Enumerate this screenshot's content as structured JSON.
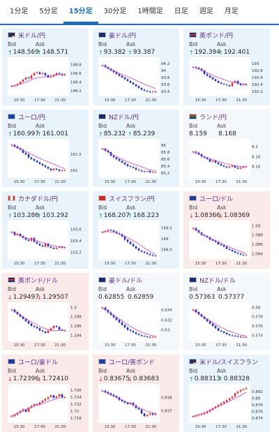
{
  "tabs": [
    {
      "label": "1分足",
      "active": false
    },
    {
      "label": "5分足",
      "active": false
    },
    {
      "label": "15分足",
      "active": true
    },
    {
      "label": "30分足",
      "active": false
    },
    {
      "label": "1時間足",
      "active": false
    },
    {
      "label": "日足",
      "active": false
    },
    {
      "label": "週足",
      "active": false
    },
    {
      "label": "月足",
      "active": false
    }
  ],
  "colors": {
    "accent": "#1a6fc4",
    "up_candle": "#d33",
    "down_candle": "#2233aa",
    "ma_line": "#d040d0",
    "up_arrow": "#1a9e4a",
    "down_arrow": "#d33"
  },
  "bid_label": "Bid",
  "ask_label": "Ask",
  "cards": [
    {
      "pair": "米ドル/円",
      "flag": "us",
      "trend": "up",
      "bid": "148.569",
      "ask": "148.571",
      "chart_data": {
        "type": "line",
        "x_ticks": [
          "15:30",
          "17:30",
          "21:30"
        ],
        "y_ticks": [
          "148.8",
          "148.6",
          "148.4",
          "148.2"
        ],
        "ylim": [
          148.1,
          148.9
        ],
        "values": [
          148.3,
          148.32,
          148.35,
          148.4,
          148.45,
          148.5,
          148.48,
          148.55,
          148.6,
          148.62,
          148.58,
          148.6,
          148.55,
          148.5,
          148.52,
          148.56,
          148.6,
          148.58,
          148.55,
          148.57
        ],
        "ma": [
          148.3,
          148.32,
          148.36,
          148.42,
          148.48,
          148.5,
          148.52,
          148.55,
          148.56,
          148.58
        ]
      }
    },
    {
      "pair": "豪ドル/円",
      "flag": "au",
      "trend": "up",
      "bid": "93.382",
      "ask": "93.387",
      "chart_data": {
        "type": "line",
        "x_ticks": [
          "15:30",
          "17:30",
          "21:30"
        ],
        "y_ticks": [
          "94.2",
          "94",
          "93.8",
          "93.6",
          "93.4"
        ],
        "ylim": [
          93.3,
          94.3
        ],
        "values": [
          94.15,
          94.1,
          94.05,
          94.0,
          93.95,
          93.9,
          93.85,
          93.8,
          93.75,
          93.7,
          93.65,
          93.6,
          93.55,
          93.5,
          93.45,
          93.42,
          93.4,
          93.38,
          93.4,
          93.38
        ],
        "ma": [
          94.15,
          94.08,
          94.0,
          93.92,
          93.85,
          93.78,
          93.7,
          93.62,
          93.55,
          93.48
        ]
      }
    },
    {
      "pair": "英ポンド/円",
      "flag": "gb",
      "trend": "up",
      "bid": "192.394",
      "ask": "192.401",
      "chart_data": {
        "type": "line",
        "x_ticks": [
          "15:30",
          "17:30",
          "21:30"
        ],
        "y_ticks": [
          "193",
          "192.8",
          "192.6",
          "192.4",
          "192.2"
        ],
        "ylim": [
          192.1,
          193.1
        ],
        "values": [
          192.9,
          192.88,
          192.85,
          192.8,
          192.7,
          192.65,
          192.6,
          192.55,
          192.5,
          192.45,
          192.42,
          192.4,
          192.38,
          192.35,
          192.45,
          192.5,
          192.42,
          192.38,
          192.4,
          192.39
        ],
        "ma": [
          192.9,
          192.85,
          192.78,
          192.7,
          192.62,
          192.56,
          192.5,
          192.46,
          192.43,
          192.41
        ]
      }
    },
    {
      "pair": "ユーロ/円",
      "flag": "eu",
      "trend": "up",
      "bid": "160.997",
      "ask": "161.001",
      "chart_data": {
        "type": "line",
        "x_ticks": [
          "15:30",
          "17:30",
          "21:30"
        ],
        "y_ticks": [
          "161.5",
          "161"
        ],
        "ylim": [
          160.8,
          161.9
        ],
        "values": [
          161.8,
          161.75,
          161.7,
          161.65,
          161.55,
          161.5,
          161.4,
          161.35,
          161.3,
          161.25,
          161.2,
          161.15,
          161.1,
          161.05,
          161.0,
          161.05,
          161.02,
          160.98,
          161.0,
          161.0
        ],
        "ma": [
          161.8,
          161.72,
          161.63,
          161.55,
          161.45,
          161.36,
          161.28,
          161.2,
          161.12,
          161.05
        ]
      }
    },
    {
      "pair": "NZドル/円",
      "flag": "nz",
      "trend": "up",
      "bid": "85.232",
      "ask": "85.239",
      "chart_data": {
        "type": "line",
        "x_ticks": [
          "15:30",
          "17:30",
          "21:30"
        ],
        "y_ticks": [
          "86",
          "85.8",
          "85.6",
          "85.4",
          "85.2"
        ],
        "ylim": [
          85.1,
          86.1
        ],
        "values": [
          85.9,
          85.85,
          85.8,
          85.7,
          85.65,
          85.6,
          85.55,
          85.5,
          85.45,
          85.4,
          85.38,
          85.35,
          85.3,
          85.28,
          85.25,
          85.24,
          85.26,
          85.22,
          85.23,
          85.23
        ],
        "ma": [
          85.9,
          85.82,
          85.72,
          85.63,
          85.55,
          85.48,
          85.42,
          85.36,
          85.3,
          85.26
        ]
      }
    },
    {
      "pair": "ランド/円",
      "flag": "za",
      "trend": "flat",
      "bid": "8.159",
      "ask": "8.168",
      "chart_data": {
        "type": "line",
        "x_ticks": [
          "15:30",
          "17:30",
          "21:30"
        ],
        "y_ticks": [
          "8.2",
          "8.18",
          "8.16"
        ],
        "ylim": [
          8.14,
          8.21
        ],
        "values": [
          8.19,
          8.188,
          8.185,
          8.18,
          8.178,
          8.175,
          8.17,
          8.172,
          8.168,
          8.165,
          8.162,
          8.16,
          8.158,
          8.16,
          8.162,
          8.158,
          8.156,
          8.158,
          8.16,
          8.16
        ],
        "ma": [
          8.19,
          8.185,
          8.18,
          8.176,
          8.172,
          8.168,
          8.165,
          8.162,
          8.16,
          8.16
        ]
      }
    },
    {
      "pair": "カナダドル/円",
      "flag": "ca",
      "trend": "up",
      "bid": "103.286",
      "ask": "103.292",
      "chart_data": {
        "type": "line",
        "x_ticks": [
          "15:30",
          "17:30",
          "21:30"
        ],
        "y_ticks": [
          "103.6",
          "103.4",
          "103.2"
        ],
        "ylim": [
          103.1,
          103.7
        ],
        "values": [
          103.55,
          103.5,
          103.52,
          103.48,
          103.45,
          103.42,
          103.4,
          103.45,
          103.38,
          103.35,
          103.32,
          103.3,
          103.35,
          103.3,
          103.28,
          103.26,
          103.28,
          103.3,
          103.28,
          103.29
        ],
        "ma": [
          103.55,
          103.51,
          103.47,
          103.44,
          103.41,
          103.38,
          103.35,
          103.32,
          103.3,
          103.29
        ]
      }
    },
    {
      "pair": "スイスフラン/円",
      "flag": "ch",
      "trend": "up",
      "bid": "168.207",
      "ask": "168.223",
      "chart_data": {
        "type": "line",
        "x_ticks": [
          "15:30",
          "17:30",
          "21:30"
        ],
        "y_ticks": [
          "169.5",
          "169",
          "168.5"
        ],
        "ylim": [
          168.1,
          169.7
        ],
        "values": [
          169.3,
          169.35,
          169.4,
          169.38,
          169.32,
          169.25,
          169.2,
          169.1,
          168.95,
          168.85,
          168.75,
          168.65,
          168.55,
          168.45,
          168.4,
          168.35,
          168.3,
          168.25,
          168.22,
          168.21
        ],
        "ma": [
          169.3,
          169.33,
          169.3,
          169.22,
          169.1,
          168.95,
          168.8,
          168.6,
          168.42,
          168.28
        ]
      }
    },
    {
      "pair": "ユーロ/ドル",
      "flag": "eu",
      "trend": "down",
      "bid": "1.08366",
      "ask": "1.08369",
      "chart_data": {
        "type": "line",
        "x_ticks": [
          "15:30",
          "17:30",
          "21:30"
        ],
        "y_ticks": [
          "1.09",
          "1.088",
          "1.086",
          "1.084"
        ],
        "ylim": [
          1.083,
          1.0905
        ],
        "values": [
          1.0895,
          1.089,
          1.0885,
          1.088,
          1.0878,
          1.0875,
          1.087,
          1.0868,
          1.0865,
          1.086,
          1.0858,
          1.0855,
          1.085,
          1.0848,
          1.0845,
          1.0842,
          1.084,
          1.0838,
          1.0837,
          1.0837
        ],
        "ma": [
          1.0895,
          1.0888,
          1.088,
          1.0873,
          1.0867,
          1.0861,
          1.0855,
          1.085,
          1.0845,
          1.084
        ]
      }
    },
    {
      "pair": "英ポンド/ドル",
      "flag": "gb",
      "trend": "down",
      "bid": "1.29497",
      "ask": "1.29507",
      "chart_data": {
        "type": "line",
        "x_ticks": [
          "15:30",
          "17:30",
          "21:30"
        ],
        "y_ticks": [
          "1.3",
          "1.298",
          "1.296",
          "1.294"
        ],
        "ylim": [
          1.293,
          1.3005
        ],
        "values": [
          1.2995,
          1.299,
          1.2985,
          1.298,
          1.2975,
          1.297,
          1.2965,
          1.296,
          1.2958,
          1.2955,
          1.295,
          1.2948,
          1.2945,
          1.295,
          1.2955,
          1.296,
          1.2958,
          1.2952,
          1.295,
          1.295
        ],
        "ma": [
          1.2995,
          1.2988,
          1.298,
          1.2972,
          1.2965,
          1.2958,
          1.2953,
          1.295,
          1.295,
          1.2951
        ]
      }
    },
    {
      "pair": "豪ドル/ドル",
      "flag": "au",
      "trend": "flat",
      "bid": "0.62855",
      "ask": "0.62859",
      "chart_data": {
        "type": "line",
        "x_ticks": [
          "15:30",
          "17:30",
          "21:30"
        ],
        "y_ticks": [
          "0.634",
          "0.632",
          "0.63"
        ],
        "ylim": [
          0.628,
          0.635
        ],
        "values": [
          0.6345,
          0.634,
          0.6335,
          0.633,
          0.6325,
          0.632,
          0.6315,
          0.631,
          0.6305,
          0.63,
          0.6298,
          0.6295,
          0.6292,
          0.629,
          0.6288,
          0.6287,
          0.6286,
          0.6285,
          0.6286,
          0.6286
        ],
        "ma": [
          0.6345,
          0.6338,
          0.633,
          0.6322,
          0.6314,
          0.6306,
          0.6299,
          0.6294,
          0.629,
          0.6287
        ]
      }
    },
    {
      "pair": "NZドル/ドル",
      "flag": "nz",
      "trend": "flat",
      "bid": "0.57363",
      "ask": "0.57377",
      "chart_data": {
        "type": "line",
        "x_ticks": [
          "15:30",
          "17:30",
          "21:30"
        ],
        "y_ticks": [
          "0.58",
          "0.578",
          "0.576",
          "0.574"
        ],
        "ylim": [
          0.573,
          0.5805
        ],
        "values": [
          0.5795,
          0.579,
          0.5785,
          0.578,
          0.5775,
          0.577,
          0.5765,
          0.576,
          0.5755,
          0.575,
          0.5748,
          0.5745,
          0.5742,
          0.574,
          0.5739,
          0.5738,
          0.5737,
          0.5736,
          0.5736,
          0.5736
        ],
        "ma": [
          0.5795,
          0.5787,
          0.5779,
          0.5771,
          0.5763,
          0.5756,
          0.575,
          0.5745,
          0.5741,
          0.5738
        ]
      }
    },
    {
      "pair": "ユーロ/豪ドル",
      "flag": "eu",
      "trend": "down",
      "bid": "1.72396",
      "ask": "1.72410",
      "chart_data": {
        "type": "line",
        "x_ticks": [
          "15:30",
          "17:30",
          "21:30"
        ],
        "y_ticks": [
          "1.726",
          "1.724",
          "1.722",
          "1.72",
          "1.718"
        ],
        "ylim": [
          1.717,
          1.727
        ],
        "values": [
          1.7185,
          1.719,
          1.7195,
          1.72,
          1.7205,
          1.7198,
          1.721,
          1.7215,
          1.722,
          1.7218,
          1.7225,
          1.723,
          1.7235,
          1.724,
          1.7245,
          1.7238,
          1.7242,
          1.7248,
          1.724,
          1.724
        ],
        "ma": [
          1.7185,
          1.7192,
          1.72,
          1.7207,
          1.7214,
          1.722,
          1.7226,
          1.7232,
          1.7237,
          1.724
        ]
      }
    },
    {
      "pair": "ユーロ/英ポンド",
      "flag": "eu",
      "trend": "down",
      "bid": "0.83675",
      "ask": "0.83683",
      "chart_data": {
        "type": "line",
        "x_ticks": [
          "15:30",
          "17:30",
          "21:30"
        ],
        "y_ticks": [
          "0.838",
          "0.837"
        ],
        "ylim": [
          0.8362,
          0.8388
        ],
        "values": [
          0.8385,
          0.8384,
          0.8383,
          0.8382,
          0.8381,
          0.838,
          0.8378,
          0.8377,
          0.8376,
          0.8375,
          0.8376,
          0.8374,
          0.8372,
          0.8371,
          0.8368,
          0.8366,
          0.8367,
          0.8368,
          0.8367,
          0.8368
        ],
        "ma": [
          0.8385,
          0.8383,
          0.8381,
          0.8379,
          0.8377,
          0.8375,
          0.8373,
          0.8371,
          0.8369,
          0.8368
        ]
      }
    },
    {
      "pair": "米ドル/スイスフラン",
      "flag": "us",
      "trend": "up",
      "bid": "0.88313",
      "ask": "0.88328",
      "chart_data": {
        "type": "line",
        "x_ticks": [
          "15:30",
          "17:30",
          "21:30"
        ],
        "y_ticks": [
          "0.882",
          "0.88",
          "0.878",
          "0.876",
          "0.874"
        ],
        "ylim": [
          0.873,
          0.8835
        ],
        "values": [
          0.8745,
          0.8748,
          0.875,
          0.8752,
          0.8755,
          0.876,
          0.8765,
          0.877,
          0.8775,
          0.878,
          0.8785,
          0.879,
          0.8795,
          0.88,
          0.8805,
          0.8815,
          0.882,
          0.8825,
          0.8828,
          0.8831
        ],
        "ma": [
          0.8745,
          0.875,
          0.8756,
          0.8764,
          0.8772,
          0.878,
          0.8789,
          0.8798,
          0.8808,
          0.8818
        ]
      }
    }
  ]
}
